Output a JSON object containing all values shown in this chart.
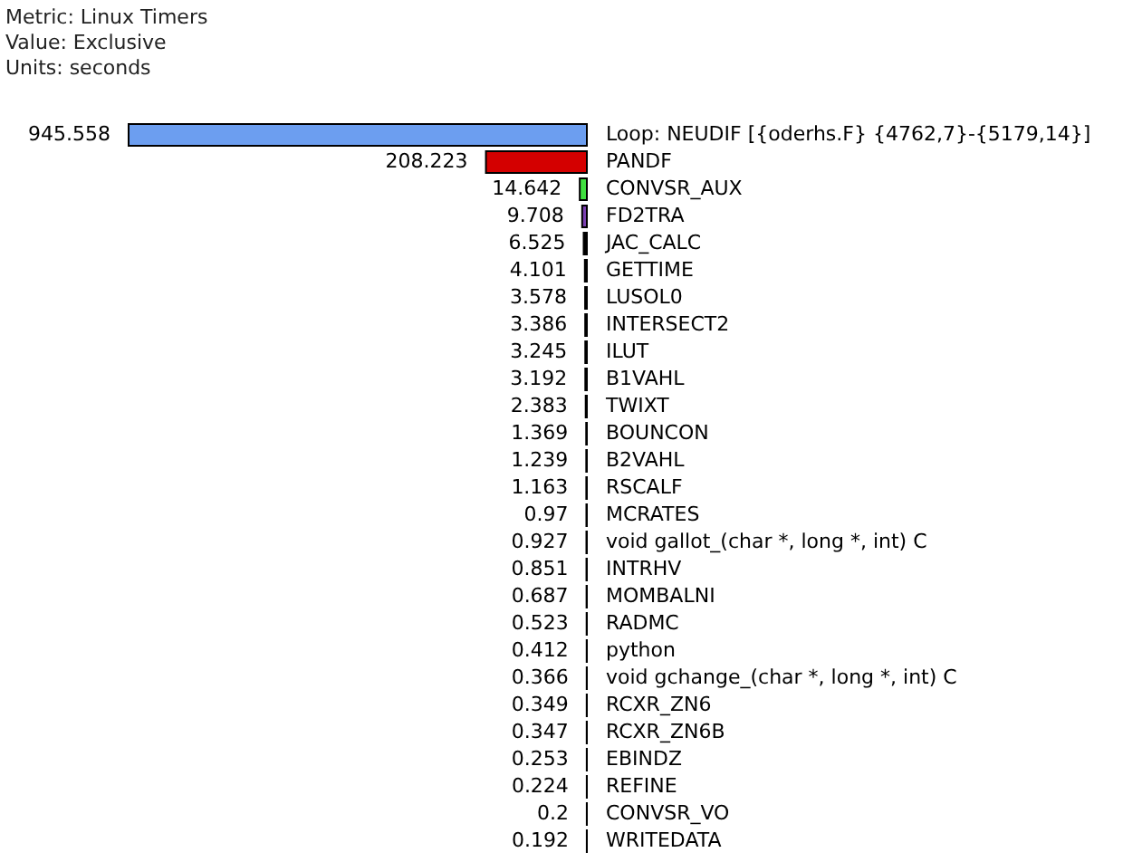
{
  "chart_data": {
    "type": "bar",
    "orientation": "horizontal",
    "annotations": [
      "Metric: Linux Timers",
      "Value: Exclusive",
      "Units: seconds"
    ],
    "categories": [
      "Loop: NEUDIF [{oderhs.F} {4762,7}-{5179,14}]",
      "PANDF",
      "CONVSR_AUX",
      "FD2TRA",
      "JAC_CALC",
      "GETTIME",
      "LUSOL0",
      "INTERSECT2",
      "ILUT",
      "B1VAHL",
      "TWIXT",
      "BOUNCON",
      "B2VAHL",
      "RSCALF",
      "MCRATES",
      "void gallot_(char *, long *, int) C",
      "INTRHV",
      "MOMBALNI",
      "RADMC",
      "python",
      "void gchange_(char *, long *, int) C",
      "RCXR_ZN6",
      "RCXR_ZN6B",
      "EBINDZ",
      "REFINE",
      "CONVSR_VO",
      "WRITEDATA"
    ],
    "values": [
      945.558,
      208.223,
      14.642,
      9.708,
      6.525,
      4.101,
      3.578,
      3.386,
      3.245,
      3.192,
      2.383,
      1.369,
      1.239,
      1.163,
      0.97,
      0.927,
      0.851,
      0.687,
      0.523,
      0.412,
      0.366,
      0.349,
      0.347,
      0.253,
      0.224,
      0.2,
      0.192
    ],
    "colors": [
      "#6c9ef0",
      "#d40000",
      "#40e040",
      "#7a3fb0",
      "#000000",
      "#000000",
      "#000000",
      "#000000",
      "#000000",
      "#000000",
      "#000000",
      "#000000",
      "#000000",
      "#000000",
      "#000000",
      "#000000",
      "#000000",
      "#000000",
      "#000000",
      "#000000",
      "#000000",
      "#000000",
      "#000000",
      "#000000",
      "#000000",
      "#000000",
      "#000000"
    ],
    "xlim": [
      945.558,
      0
    ],
    "data_labels": true,
    "tick_labels": "y",
    "grid": false,
    "legend": false
  }
}
